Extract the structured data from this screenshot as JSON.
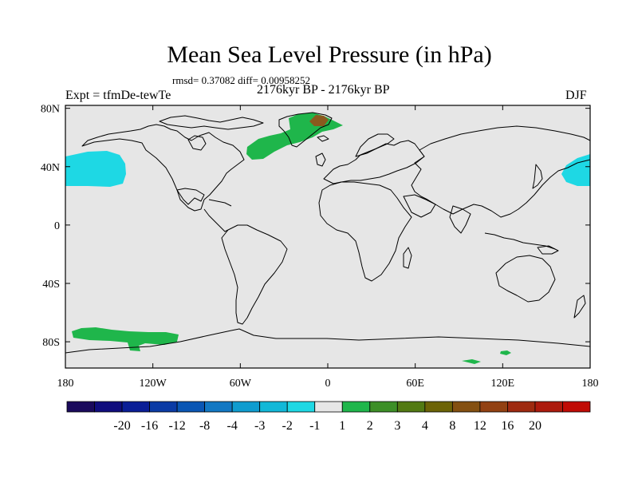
{
  "title": "Mean Sea Level Pressure (in hPa)",
  "stats": "rmsd= 0.37082 diff= 0.00958252",
  "period": "2176kyr BP - 2176kyr BP",
  "experiment": "Expt = tfmDe-tewTe",
  "season": "DJF",
  "map": {
    "land_color": "#e6e6e6",
    "lat_ticks": [
      {
        "value": 80,
        "label": "80N"
      },
      {
        "value": 40,
        "label": "40N"
      },
      {
        "value": 0,
        "label": "0"
      },
      {
        "value": -40,
        "label": "40S"
      },
      {
        "value": -80,
        "label": "80S"
      }
    ],
    "lon_ticks": [
      {
        "value": -180,
        "label": "180"
      },
      {
        "value": -120,
        "label": "120W"
      },
      {
        "value": -60,
        "label": "60W"
      },
      {
        "value": 0,
        "label": "0"
      },
      {
        "value": 60,
        "label": "60E"
      },
      {
        "value": 120,
        "label": "120E"
      },
      {
        "value": 180,
        "label": "180"
      }
    ]
  },
  "colorbar": {
    "colors": [
      "#1a0a5c",
      "#100d7d",
      "#0a1e96",
      "#0b3ba5",
      "#0a56b4",
      "#1278c3",
      "#0f9ccf",
      "#12b8d8",
      "#1ed8e4",
      "#e6e6e6",
      "#1fb64b",
      "#3d8f27",
      "#527a13",
      "#6c6307",
      "#845011",
      "#924112",
      "#9e2a10",
      "#ac1a0d",
      "#c00b05"
    ],
    "labels": [
      "-20",
      "-16",
      "-12",
      "-8",
      "-4",
      "-3",
      "-2",
      "-1",
      "1",
      "2",
      "3",
      "4",
      "8",
      "12",
      "16",
      "20"
    ]
  }
}
